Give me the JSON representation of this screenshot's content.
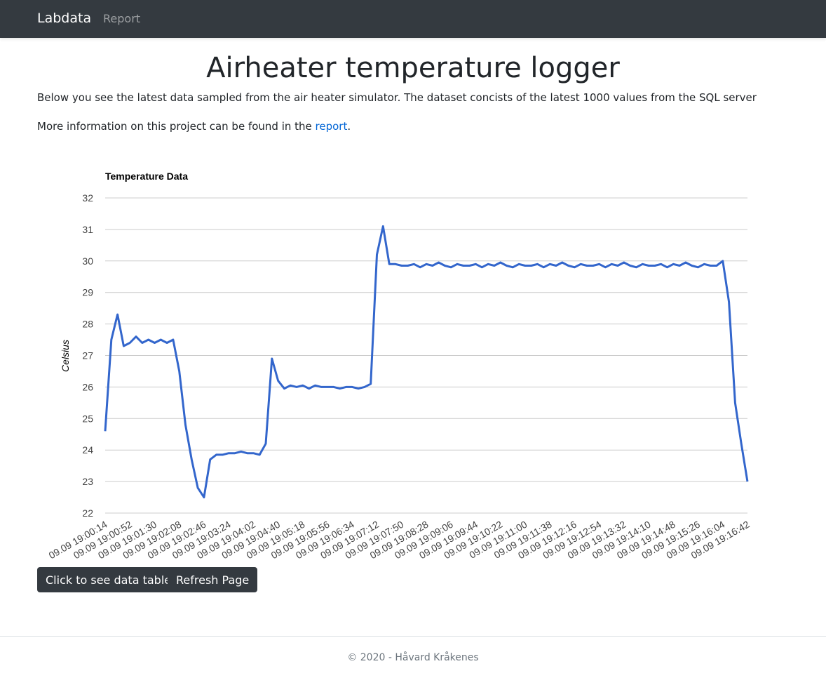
{
  "nav": {
    "brand": "Labdata",
    "links": [
      "Report"
    ]
  },
  "heading": "Airheater temperature logger",
  "intro": "Below you see the latest data sampled from the air heater simulator. The dataset concists of the latest 1000 values from the SQL server",
  "info": {
    "before": "More information on this project can be found in the ",
    "link": "report",
    "after": "."
  },
  "chart_data": {
    "type": "line",
    "title": "Temperature Data",
    "y_label": "Celsius",
    "categories": [
      "09.09 19:00:14",
      null,
      null,
      null,
      "09.09 19:00:52",
      null,
      null,
      null,
      "09.09 19:01:30",
      null,
      null,
      null,
      "09.09 19:02:08",
      null,
      null,
      null,
      "09.09 19:02:46",
      null,
      null,
      null,
      "09.09 19:03:24",
      null,
      null,
      null,
      "09.09 19:04:02",
      null,
      null,
      null,
      "09.09 19:04:40",
      null,
      null,
      null,
      "09.09 19:05:18",
      null,
      null,
      null,
      "09.09 19:05:56",
      null,
      null,
      null,
      "09.09 19:06:34",
      null,
      null,
      null,
      "09.09 19:07:12",
      null,
      null,
      null,
      "09.09 19:07:50",
      null,
      null,
      null,
      "09.09 19:08:28",
      null,
      null,
      null,
      "09.09 19:09:06",
      null,
      null,
      null,
      "09.09 19:09:44",
      null,
      null,
      null,
      "09.09 19:10:22",
      null,
      null,
      null,
      "09.09 19:11:00",
      null,
      null,
      null,
      "09.09 19:11:38",
      null,
      null,
      null,
      "09.09 19:12:16",
      null,
      null,
      null,
      "09.09 19:12:54",
      null,
      null,
      null,
      "09.09 19:13:32",
      null,
      null,
      null,
      "09.09 19:14:10",
      null,
      null,
      null,
      "09.09 19:14:48",
      null,
      null,
      null,
      "09.09 19:15:26",
      null,
      null,
      null,
      "09.09 19:16:04",
      null,
      null,
      null,
      "09.09 19:16:42"
    ],
    "series": [
      {
        "name": "Celsius",
        "color": "#3366cc",
        "values": [
          24.6,
          27.5,
          28.3,
          27.3,
          27.4,
          27.6,
          27.4,
          27.5,
          27.4,
          27.5,
          27.4,
          27.5,
          26.5,
          24.8,
          23.7,
          22.8,
          22.5,
          23.7,
          23.85,
          23.85,
          23.9,
          23.9,
          23.95,
          23.9,
          23.9,
          23.85,
          24.2,
          26.9,
          26.2,
          25.95,
          26.05,
          26.0,
          26.05,
          25.95,
          26.05,
          26.0,
          26.0,
          26.0,
          25.95,
          26.0,
          26.0,
          25.95,
          26.0,
          26.1,
          30.2,
          31.1,
          29.9,
          29.9,
          29.85,
          29.85,
          29.9,
          29.8,
          29.9,
          29.85,
          29.95,
          29.85,
          29.8,
          29.9,
          29.85,
          29.85,
          29.9,
          29.8,
          29.9,
          29.85,
          29.95,
          29.85,
          29.8,
          29.9,
          29.85,
          29.85,
          29.9,
          29.8,
          29.9,
          29.85,
          29.95,
          29.85,
          29.8,
          29.9,
          29.85,
          29.85,
          29.9,
          29.8,
          29.9,
          29.85,
          29.95,
          29.85,
          29.8,
          29.9,
          29.85,
          29.85,
          29.9,
          29.8,
          29.9,
          29.85,
          29.95,
          29.85,
          29.8,
          29.9,
          29.85,
          29.85,
          30.0,
          28.7,
          25.5,
          24.2,
          23.0
        ]
      }
    ],
    "ylim": [
      22,
      32
    ],
    "yticks": [
      22,
      23,
      24,
      25,
      26,
      27,
      28,
      29,
      30,
      31,
      32
    ],
    "grid": true
  },
  "buttons": [
    "Click to see data table",
    "Refresh Page"
  ],
  "footer": "© 2020 - Håvard Kråkenes"
}
